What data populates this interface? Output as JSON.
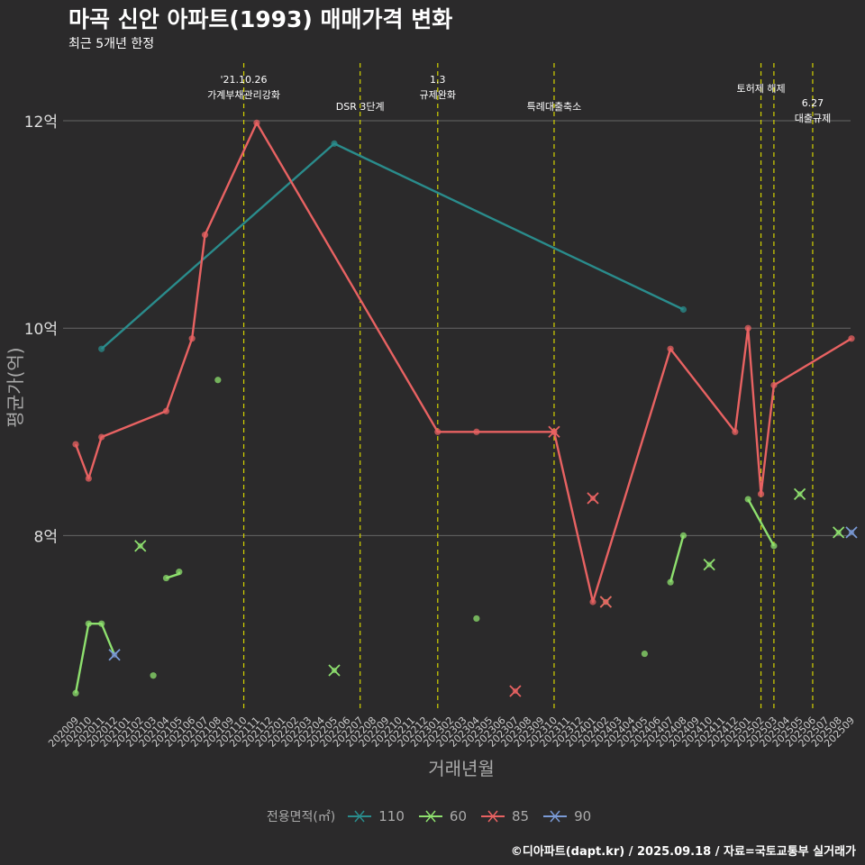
{
  "title": "마곡 신안 아파트(1993) 매매가격 변화",
  "subtitle": "최근 5개년 한정",
  "caption": "©디아파트(dapt.kr) / 2025.09.18 / 자료=국토교통부 실거래가",
  "chart_data": {
    "type": "line",
    "xlabel": "거래년월",
    "ylabel": "평균가(억)",
    "ylim": [
      6.3,
      12.6
    ],
    "yticks": [
      8,
      10,
      12
    ],
    "ytick_labels": [
      "8억",
      "10억",
      "12억"
    ],
    "categories": [
      "202009",
      "202010",
      "202011",
      "202012",
      "202101",
      "202102",
      "202103",
      "202104",
      "202105",
      "202106",
      "202107",
      "202108",
      "202109",
      "202110",
      "202111",
      "202112",
      "202201",
      "202202",
      "202203",
      "202204",
      "202205",
      "202206",
      "202207",
      "202208",
      "202209",
      "202210",
      "202211",
      "202212",
      "202301",
      "202302",
      "202303",
      "202304",
      "202305",
      "202306",
      "202307",
      "202308",
      "202309",
      "202310",
      "202311",
      "202312",
      "202401",
      "202402",
      "202403",
      "202404",
      "202405",
      "202406",
      "202407",
      "202408",
      "202409",
      "202410",
      "202411",
      "202412",
      "202501",
      "202502",
      "202503",
      "202504",
      "202505",
      "202506",
      "202507",
      "202508",
      "202509"
    ],
    "legend_title": "전용면적(㎡)",
    "series": [
      {
        "name": "110",
        "color": "#2a8c8c",
        "lines": [
          [
            [
              "202011",
              9.8
            ],
            [
              "202205",
              11.78
            ],
            [
              "202408",
              10.18
            ]
          ]
        ],
        "points": [
          [
            "202011",
            9.8
          ],
          [
            "202205",
            11.78
          ],
          [
            "202408",
            10.18
          ]
        ],
        "cross": []
      },
      {
        "name": "60",
        "color": "#8ee06e",
        "lines": [
          [
            [
              "202009",
              6.48
            ],
            [
              "202010",
              7.15
            ],
            [
              "202011",
              7.15
            ],
            [
              "202012",
              6.85
            ]
          ],
          [
            [
              "202104",
              7.59
            ],
            [
              "202105",
              7.63
            ],
            [
              "202105",
              7.65
            ]
          ],
          [
            [
              "202407",
              7.55
            ],
            [
              "202408",
              8.0
            ]
          ],
          [
            [
              "202501",
              8.35
            ],
            [
              "202503",
              7.9
            ]
          ]
        ],
        "points": [
          [
            "202009",
            6.48
          ],
          [
            "202010",
            7.15
          ],
          [
            "202011",
            7.15
          ],
          [
            "202103",
            6.65
          ],
          [
            "202104",
            7.59
          ],
          [
            "202105",
            7.65
          ],
          [
            "202108",
            9.5
          ],
          [
            "202304",
            7.2
          ],
          [
            "202405",
            6.86
          ],
          [
            "202407",
            7.55
          ],
          [
            "202408",
            8.0
          ],
          [
            "202501",
            8.35
          ],
          [
            "202503",
            7.9
          ]
        ],
        "cross": [
          [
            "202102",
            7.9
          ],
          [
            "202205",
            6.7
          ],
          [
            "202402",
            7.36
          ],
          [
            "202410",
            7.72
          ],
          [
            "202505",
            8.4
          ],
          [
            "202508",
            8.03
          ]
        ]
      },
      {
        "name": "85",
        "color": "#e86262",
        "lines": [
          [
            [
              "202009",
              8.88
            ],
            [
              "202010",
              8.55
            ],
            [
              "202011",
              8.95
            ],
            [
              "202104",
              9.2
            ],
            [
              "202106",
              9.9
            ],
            [
              "202107",
              10.9
            ],
            [
              "202111",
              11.98
            ],
            [
              "202301",
              9.0
            ],
            [
              "202304",
              9.0
            ],
            [
              "202310",
              9.0
            ],
            [
              "202401",
              7.36
            ],
            [
              "202407",
              9.8
            ],
            [
              "202412",
              9.0
            ],
            [
              "202501",
              10.0
            ],
            [
              "202502",
              8.4
            ],
            [
              "202503",
              9.45
            ],
            [
              "202509",
              9.9
            ]
          ]
        ],
        "points": [
          [
            "202009",
            8.88
          ],
          [
            "202010",
            8.55
          ],
          [
            "202011",
            8.95
          ],
          [
            "202104",
            9.2
          ],
          [
            "202106",
            9.9
          ],
          [
            "202107",
            10.9
          ],
          [
            "202111",
            11.98
          ],
          [
            "202301",
            9.0
          ],
          [
            "202304",
            9.0
          ],
          [
            "202310",
            9.0
          ],
          [
            "202401",
            7.36
          ],
          [
            "202407",
            9.8
          ],
          [
            "202412",
            9.0
          ],
          [
            "202501",
            10.0
          ],
          [
            "202502",
            8.4
          ],
          [
            "202503",
            9.45
          ],
          [
            "202509",
            9.9
          ]
        ],
        "cross": [
          [
            "202307",
            6.5
          ],
          [
            "202310",
            9.0
          ],
          [
            "202401",
            8.36
          ],
          [
            "202402",
            7.36
          ]
        ]
      },
      {
        "name": "90",
        "color": "#7a9ad6",
        "lines": [],
        "points": [],
        "cross": [
          [
            "202012",
            6.85
          ],
          [
            "202509",
            8.03
          ]
        ]
      }
    ],
    "events": [
      {
        "x": "202110",
        "offset": 0.0,
        "lines": [
          "'21.10.26",
          "가계부채관리강화"
        ],
        "level": 0
      },
      {
        "x": "202207",
        "offset": 0.0,
        "lines": [
          "DSR 3단계"
        ],
        "level": 1
      },
      {
        "x": "202301",
        "offset": 0.0,
        "lines": [
          "1.3",
          "규제완화"
        ],
        "level": 0
      },
      {
        "x": "202310",
        "offset": 0.0,
        "lines": [
          "특례대출축소"
        ],
        "level": 1
      },
      {
        "x": "202502",
        "offset": 0.0,
        "lines": [
          "토허제 해제"
        ],
        "level": 2
      },
      {
        "x": "202503",
        "offset": 0.0,
        "lines": [],
        "level": 2
      },
      {
        "x": "202506",
        "offset": 0.0,
        "lines": [
          "6.27",
          "대출규제"
        ],
        "level": 3
      }
    ]
  }
}
